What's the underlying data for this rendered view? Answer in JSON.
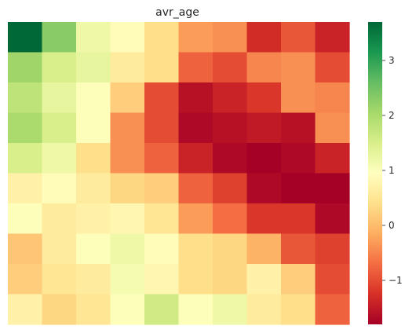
{
  "chart_data": {
    "type": "heatmap",
    "title": "avr_age",
    "xlabel": "",
    "ylabel": "",
    "colormap": "RdYlGn",
    "vmin": -1.8,
    "vmax": 3.7,
    "colorbar_ticks": [
      -1,
      0,
      1,
      2,
      3
    ],
    "colorbar_tick_labels": [
      "−1",
      "0",
      "1",
      "2",
      "3"
    ],
    "rows": 10,
    "cols": 10,
    "values": [
      [
        3.7,
        2.3,
        1.2,
        0.9,
        0.4,
        -0.3,
        -0.4,
        -1.3,
        -0.9,
        -1.4
      ],
      [
        2.1,
        1.5,
        1.3,
        0.6,
        0.4,
        -0.8,
        -1.0,
        -0.5,
        -0.4,
        -1.0
      ],
      [
        1.8,
        1.3,
        1.0,
        0.2,
        -1.0,
        -1.6,
        -1.4,
        -1.2,
        -0.4,
        -0.5
      ],
      [
        2.0,
        1.5,
        1.0,
        -0.4,
        -1.0,
        -1.7,
        -1.6,
        -1.5,
        -1.6,
        -0.4
      ],
      [
        1.5,
        1.2,
        0.4,
        -0.4,
        -0.8,
        -1.4,
        -1.7,
        -1.8,
        -1.7,
        -1.4
      ],
      [
        0.7,
        0.9,
        0.6,
        0.3,
        0.2,
        -0.8,
        -1.1,
        -1.7,
        -1.85,
        -1.85
      ],
      [
        1.0,
        0.6,
        0.7,
        0.8,
        0.5,
        -0.3,
        -0.7,
        -1.2,
        -1.2,
        -1.7
      ],
      [
        0.1,
        0.6,
        1.0,
        1.2,
        0.9,
        0.4,
        0.3,
        -0.1,
        -0.9,
        -1.1
      ],
      [
        0.2,
        0.5,
        0.6,
        1.1,
        0.8,
        0.4,
        0.3,
        0.7,
        0.2,
        -1.0
      ],
      [
        0.7,
        0.3,
        0.5,
        1.0,
        1.6,
        1.0,
        1.2,
        0.6,
        0.4,
        -0.8
      ]
    ]
  }
}
